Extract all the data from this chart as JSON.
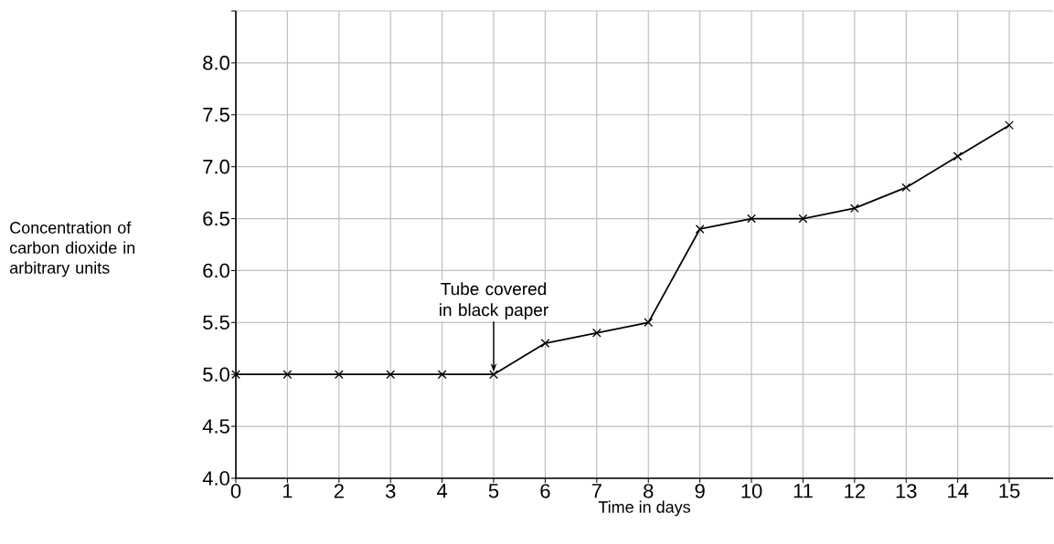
{
  "chart_data": {
    "type": "line",
    "xlabel": "Time in days",
    "ylabel": "Concentration of carbon dioxide in arbitrary units",
    "x": [
      0,
      1,
      2,
      3,
      4,
      5,
      6,
      7,
      8,
      9,
      10,
      11,
      12,
      13,
      14,
      15
    ],
    "series": [
      {
        "color": "#000000",
        "values": [
          5.0,
          5.0,
          5.0,
          5.0,
          5.0,
          5.0,
          5.3,
          5.4,
          5.5,
          6.4,
          6.5,
          6.5,
          6.6,
          6.8,
          7.1,
          7.4
        ]
      }
    ],
    "xlim": [
      0,
      15.85
    ],
    "ylim": [
      4,
      8.5
    ],
    "xticks": [
      0,
      1,
      2,
      3,
      4,
      5,
      6,
      7,
      8,
      9,
      10,
      11,
      12,
      13,
      14,
      15
    ],
    "yticks": [
      {
        "value": 4,
        "label": "4.0"
      },
      {
        "value": 4.5,
        "label": "4.5"
      },
      {
        "value": 5,
        "label": "5.0"
      },
      {
        "value": 5.5,
        "label": "5.5"
      },
      {
        "value": 6,
        "label": "6.0"
      },
      {
        "value": 6.5,
        "label": "6.5"
      },
      {
        "value": 7,
        "label": "7.0"
      },
      {
        "value": 7.5,
        "label": "7.5"
      },
      {
        "value": 8,
        "label": "8.0"
      },
      {
        "value": 8.5,
        "label": null
      }
    ],
    "annotations": [
      {
        "text": "Tube covered in black paper",
        "x": 5,
        "y": 5.0
      }
    ],
    "grid": true,
    "marker": "cross",
    "line_style": "solid"
  }
}
